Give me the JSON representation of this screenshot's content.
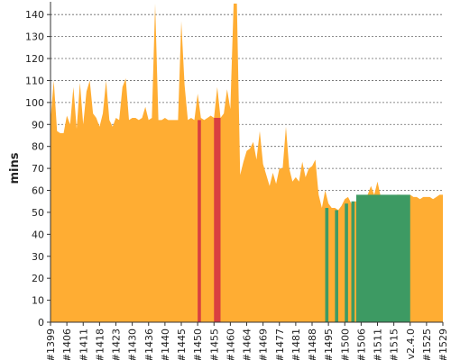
{
  "chart_data": {
    "type": "area",
    "ylabel": "mins",
    "ylim": [
      0,
      145
    ],
    "yticks": [
      0,
      10,
      20,
      30,
      40,
      50,
      60,
      70,
      80,
      90,
      100,
      110,
      120,
      130,
      140
    ],
    "grid": true,
    "colors": {
      "area": "#FFAD33",
      "failed": "#D94040",
      "passed": "#3D9A63",
      "grid": "#666666",
      "axis": "#333333"
    },
    "x_tick_labels": [
      "#1399",
      "#1406",
      "#1411",
      "#1418",
      "#1423",
      "#1430",
      "#1436",
      "#1440",
      "#1445",
      "#1450",
      "#1455",
      "#1460",
      "#1464",
      "#1469",
      "#1477",
      "#1481",
      "#1488",
      "#1495",
      "#1500",
      "#1506",
      "#1511",
      "#1515",
      "v2.4.0",
      "#1525",
      "#1529"
    ],
    "x_count": 120,
    "x_tick_indices": [
      0,
      5,
      10,
      15,
      20,
      25,
      30,
      35,
      40,
      45,
      50,
      55,
      60,
      65,
      70,
      75,
      80,
      85,
      90,
      95,
      100,
      105,
      110,
      115,
      120
    ],
    "series": [
      {
        "values": [
          92,
          110,
          87,
          86,
          86,
          94,
          90,
          107,
          88,
          109,
          90,
          105,
          110,
          95,
          93,
          89,
          95,
          110,
          92,
          89,
          93,
          92,
          107,
          111,
          92,
          93,
          93,
          92,
          93,
          98,
          92,
          93,
          145,
          92,
          92,
          93,
          92,
          92,
          92,
          92,
          137,
          108,
          92,
          93,
          92,
          104,
          93,
          92,
          93,
          94,
          93,
          107,
          93,
          95,
          106,
          97,
          145,
          145,
          67,
          73,
          78,
          79,
          82,
          74,
          87,
          72,
          67,
          62,
          68,
          63,
          70,
          70,
          89,
          70,
          64,
          66,
          64,
          73,
          66,
          70,
          71,
          74,
          58,
          52,
          60,
          54,
          52,
          52,
          51,
          53,
          56,
          57,
          54,
          55,
          55,
          55,
          55,
          58,
          62,
          58,
          64,
          57,
          56,
          56,
          58,
          57,
          58,
          58,
          56,
          57,
          58,
          57,
          57,
          56,
          57,
          57,
          57,
          56,
          57,
          58,
          58
        ]
      }
    ],
    "highlights": [
      {
        "status": "failed",
        "from": 45,
        "to": 46,
        "value": 92
      },
      {
        "status": "failed",
        "from": 50,
        "to": 52,
        "value": 93
      },
      {
        "status": "passed",
        "from": 84,
        "to": 85,
        "value": 52
      },
      {
        "status": "passed",
        "from": 87,
        "to": 88,
        "value": 51
      },
      {
        "status": "passed",
        "from": 90,
        "to": 91,
        "value": 54
      },
      {
        "status": "passed",
        "from": 92,
        "to": 93,
        "value": 55
      },
      {
        "status": "passed",
        "from": 93.5,
        "to": 110,
        "value": 58
      }
    ]
  }
}
